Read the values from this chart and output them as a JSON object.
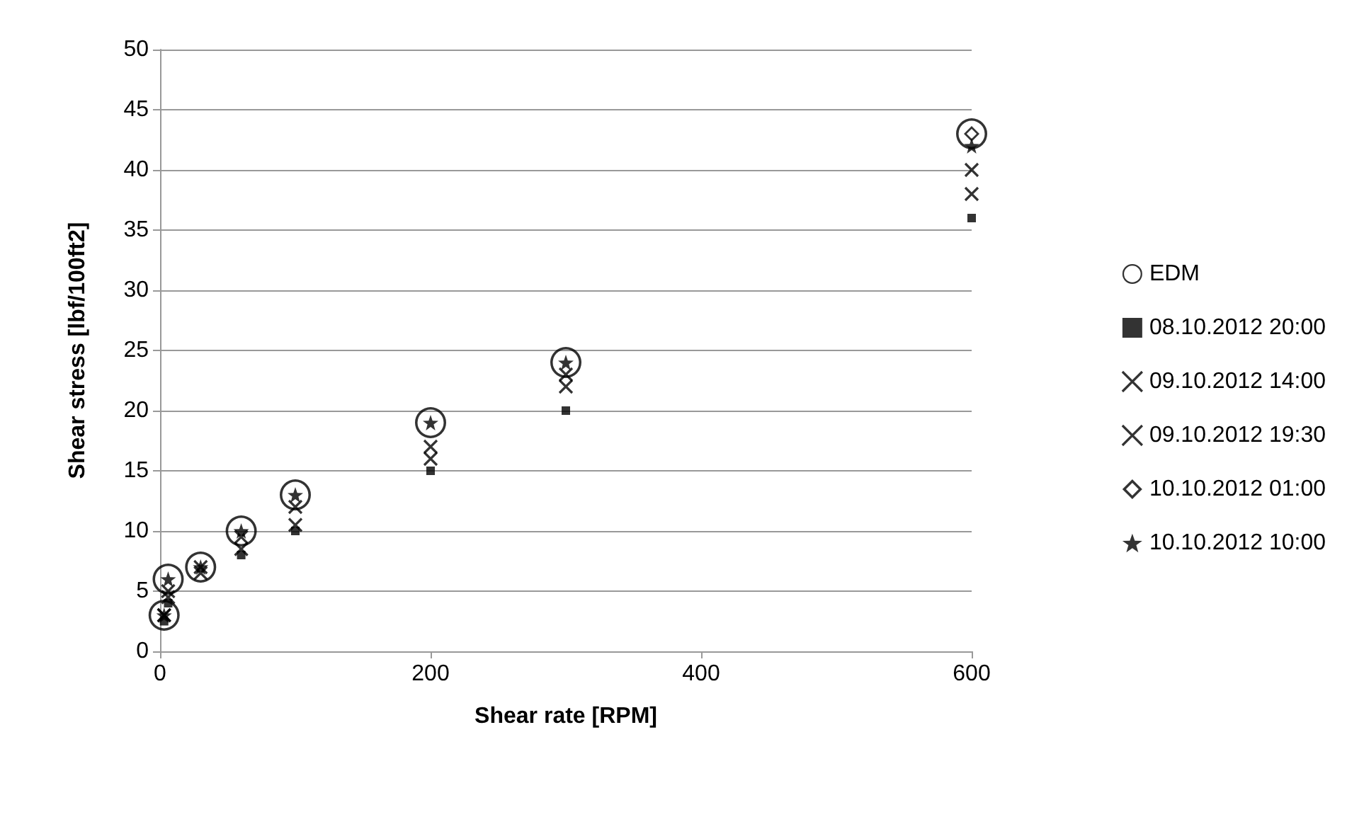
{
  "chart_data": {
    "type": "scatter",
    "xlabel": "Shear rate [RPM]",
    "ylabel": "Shear stress [lbf/100ft2]",
    "x": [
      3,
      6,
      30,
      60,
      100,
      200,
      300,
      600
    ],
    "series": [
      {
        "name": "EDM",
        "color": "#000000",
        "marker": "circle",
        "values": [
          3,
          6,
          7,
          10,
          13,
          19,
          24,
          43
        ]
      },
      {
        "name": "08.10.2012 20:00",
        "color": "#000000",
        "marker": "square",
        "values": [
          2.5,
          4,
          null,
          8,
          10,
          15,
          20,
          36
        ]
      },
      {
        "name": "09.10.2012 14:00",
        "color": "#000000",
        "marker": "cross",
        "values": [
          3,
          4.5,
          6.5,
          8.5,
          10.5,
          16,
          22,
          38
        ]
      },
      {
        "name": "09.10.2012 19:30",
        "color": "#000000",
        "marker": "cross",
        "values": [
          3,
          5,
          7,
          9.5,
          12,
          17,
          23,
          40
        ]
      },
      {
        "name": "10.10.2012 01:00",
        "color": "#000000",
        "marker": "diamond",
        "values": [
          null,
          null,
          null,
          null,
          null,
          null,
          null,
          43
        ]
      },
      {
        "name": "10.10.2012 10:00",
        "color": "#000000",
        "marker": "star",
        "values": [
          3,
          6,
          7,
          10,
          13,
          19,
          24,
          42
        ]
      }
    ],
    "xlim": [
      0,
      600
    ],
    "xticks": [
      0,
      200,
      400,
      600
    ],
    "ylim": [
      0,
      50
    ],
    "yticks": [
      0,
      5,
      10,
      15,
      20,
      25,
      30,
      35,
      40,
      45,
      50
    ],
    "grid": "y",
    "legend": "right"
  }
}
